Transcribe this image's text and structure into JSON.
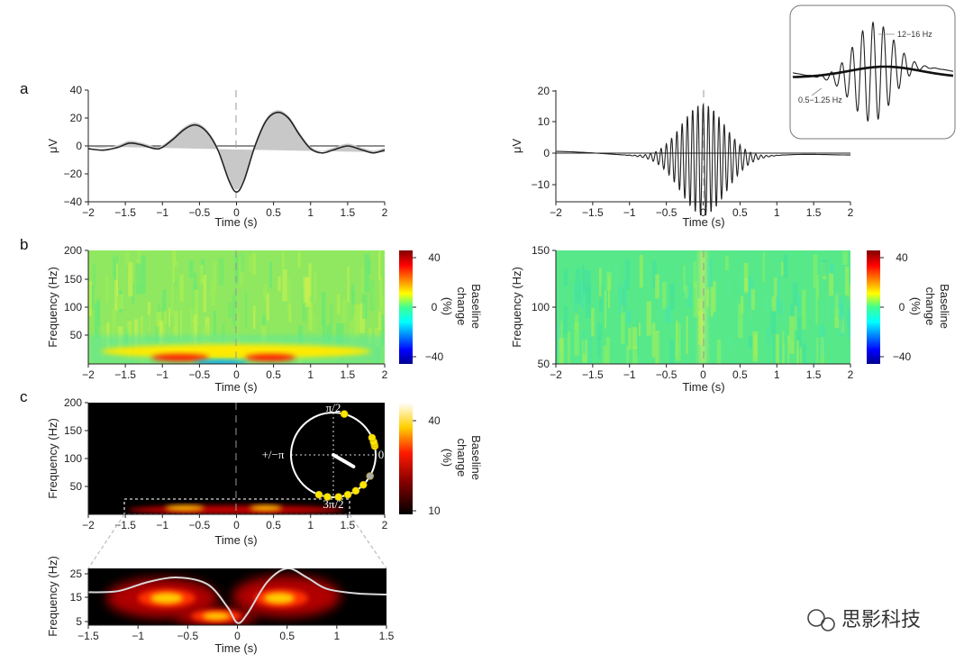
{
  "panel_labels": {
    "a": "a",
    "b": "b",
    "c": "c"
  },
  "watermark": {
    "text": "思影科技"
  },
  "colors": {
    "trace": "#222222",
    "shade": "#bdbdbd",
    "dashed": "#999999"
  },
  "chart_data": [
    {
      "id": "erp_left",
      "type": "line",
      "xlabel": "Time (s)",
      "ylabel": "μV",
      "xlim": [
        -2,
        2
      ],
      "ylim": [
        -40,
        40
      ],
      "xticks": [
        "−2",
        "−1.5",
        "−1",
        "−0.5",
        "0",
        "0.5",
        "1",
        "1.5",
        "2"
      ],
      "yticks": [
        "40",
        "20",
        "0",
        "−20",
        "−40"
      ],
      "x": [
        -2,
        -1.8,
        -1.6,
        -1.45,
        -1.3,
        -1.1,
        -1.0,
        -0.85,
        -0.7,
        -0.55,
        -0.4,
        -0.25,
        -0.1,
        0,
        0.1,
        0.25,
        0.4,
        0.55,
        0.7,
        0.85,
        1.0,
        1.15,
        1.3,
        1.5,
        1.7,
        1.85,
        2
      ],
      "y": [
        -2,
        -3,
        -1,
        2,
        1,
        -2,
        -1,
        5,
        12,
        15,
        10,
        -3,
        -25,
        -33,
        -25,
        0,
        18,
        24,
        20,
        8,
        -2,
        -5,
        -3,
        0,
        -3,
        -5,
        -3
      ]
    },
    {
      "id": "erp_right",
      "type": "line",
      "xlabel": "Time (s)",
      "ylabel": "μV",
      "xlim": [
        -2,
        2
      ],
      "ylim": [
        -15,
        20
      ],
      "xticks": [
        "−2",
        "−1.5",
        "−1",
        "−0.5",
        "0",
        "0.5",
        "1",
        "1.5",
        "2"
      ],
      "yticks": [
        "20",
        "10",
        "0",
        "−10"
      ],
      "spindle_freq_hz": 14,
      "peak_amplitude": 18,
      "slow_dip": -2.5,
      "inset_labels": {
        "fast": "12−16 Hz",
        "slow": "0.5−1.25 Hz"
      }
    },
    {
      "id": "tf_left",
      "type": "heatmap",
      "xlabel": "Time (s)",
      "ylabel": "Frequency (Hz)",
      "xlim": [
        -2,
        2
      ],
      "ylim": [
        0,
        200
      ],
      "xticks": [
        "−2",
        "−1.5",
        "−1",
        "−0.5",
        "0",
        "0.5",
        "1",
        "1.5",
        "2"
      ],
      "yticks": [
        "200",
        "150",
        "100",
        "50"
      ],
      "colorbar": {
        "label": "Baseline change (%)",
        "ticks": [
          "40",
          "0",
          "−40"
        ],
        "range": [
          -40,
          40
        ],
        "colormap": "jet"
      }
    },
    {
      "id": "tf_right",
      "type": "heatmap",
      "xlabel": "Time (s)",
      "ylabel": "Frequency (Hz)",
      "xlim": [
        -2,
        2
      ],
      "ylim": [
        50,
        150
      ],
      "xticks": [
        "−2",
        "−1.5",
        "−1",
        "−0.5",
        "0",
        "0.5",
        "1",
        "1.5",
        "2"
      ],
      "yticks": [
        "150",
        "100",
        "50"
      ],
      "colorbar": {
        "label": "Baseline change (%)",
        "ticks": [
          "40",
          "0",
          "−40"
        ],
        "range": [
          -40,
          40
        ],
        "colormap": "jet"
      }
    },
    {
      "id": "tf_pac",
      "type": "heatmap",
      "xlabel": "Time (s)",
      "ylabel": "Frequency (Hz)",
      "xlim": [
        -2,
        2
      ],
      "ylim": [
        0,
        200
      ],
      "xticks": [
        "−2",
        "−1.5",
        "−1",
        "−0.5",
        "0",
        "0.5",
        "1",
        "1.5",
        "2"
      ],
      "yticks": [
        "200",
        "150",
        "100",
        "50"
      ],
      "colorbar": {
        "label": "Baseline change (%)",
        "ticks": [
          "40",
          "10"
        ],
        "range": [
          10,
          45
        ],
        "colormap": "hot"
      },
      "polar": {
        "labels": {
          "top": "π/2",
          "left": "+/−π",
          "right": "0",
          "bottom": "3π/2"
        },
        "preferred_phase_deg": -30,
        "vector_length": 0.55,
        "dots_deg": [
          12,
          15,
          18,
          24,
          -30,
          -45,
          -58,
          -70,
          -83,
          -98,
          -110,
          75
        ]
      }
    },
    {
      "id": "tf_zoom",
      "type": "heatmap",
      "xlabel": "Time (s)",
      "ylabel": "Frequency (Hz)",
      "xlim": [
        -1.5,
        1.5
      ],
      "ylim": [
        5,
        30
      ],
      "xticks": [
        "−1.5",
        "−1",
        "−0.5",
        "0",
        "0.5",
        "1",
        "1.5"
      ],
      "yticks": [
        "25",
        "15",
        "5"
      ],
      "colormap": "hot",
      "overlay_x": [
        -1.5,
        -1.2,
        -0.9,
        -0.6,
        -0.3,
        -0.1,
        0,
        0.1,
        0.3,
        0.5,
        0.7,
        0.9,
        1.2,
        1.5
      ],
      "overlay_y": [
        19.5,
        20,
        24,
        26,
        23,
        13,
        6,
        10,
        24,
        30,
        26,
        21,
        19,
        18.5
      ]
    }
  ]
}
